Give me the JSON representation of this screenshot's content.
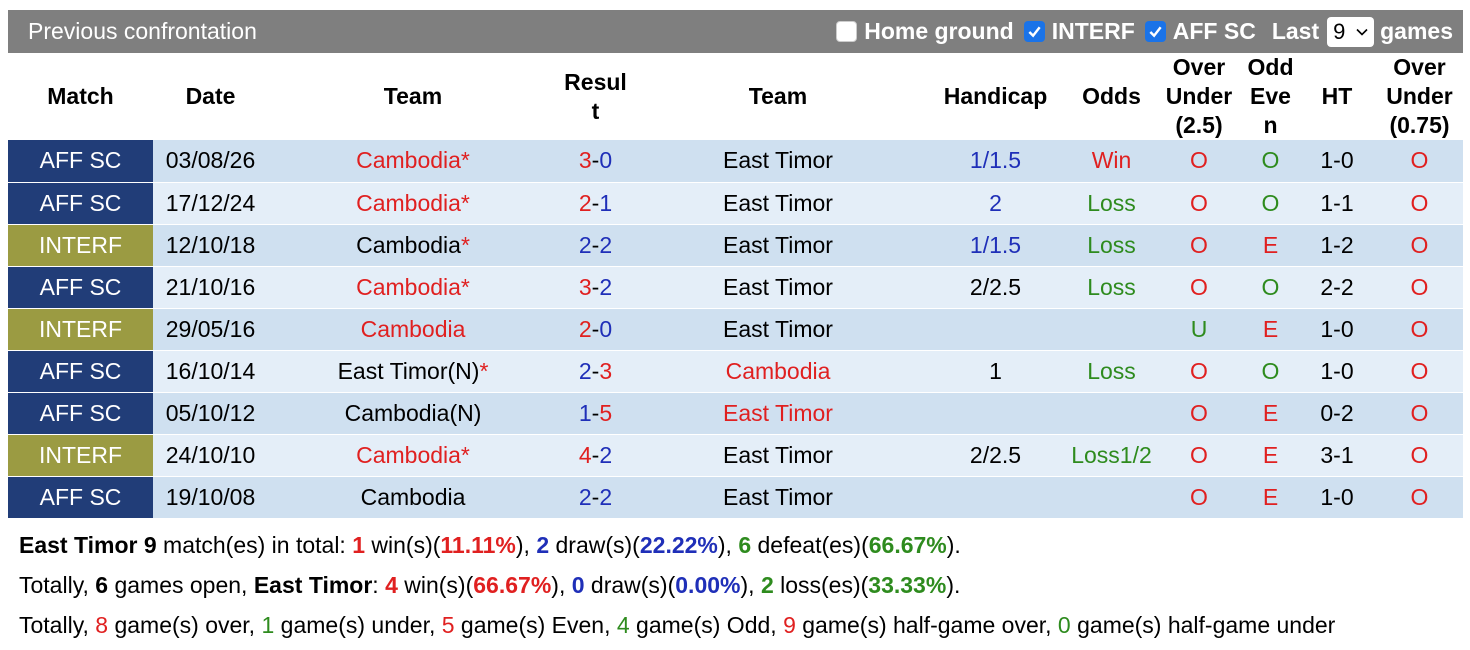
{
  "header": {
    "title": "Previous confrontation",
    "filters": [
      {
        "label": "Home ground",
        "checked": false
      },
      {
        "label": "INTERF",
        "checked": true
      },
      {
        "label": "AFF SC",
        "checked": true
      }
    ],
    "last_label": "Last",
    "last_value": "9",
    "games_label": "games"
  },
  "columns": {
    "match": "Match",
    "date": "Date",
    "team1": "Team",
    "result_l1": "Resul",
    "result_l2": "t",
    "team2": "Team",
    "handicap": "Handicap",
    "odds": "Odds",
    "ou_l1": "Over",
    "ou_l2": "Under",
    "ou_l3": "(2.5)",
    "oe_l1": "Odd",
    "oe_l2": "Eve",
    "oe_l3": "n",
    "ht": "HT",
    "ou2_l1": "Over",
    "ou2_l2": "Under",
    "ou2_l3": "(0.75)"
  },
  "rows": [
    {
      "match": "AFF SC",
      "date": "03/08/26",
      "team1": "Cambodia*",
      "team1_color": "red",
      "g1": "3",
      "g2": "0",
      "g1_color": "red",
      "g2_color": "blue",
      "team2": "East Timor",
      "team2_color": "dark",
      "handicap": "1/1.5",
      "handicap_color": "blue",
      "odds": "Win",
      "odds_color": "red",
      "ou": "O",
      "ou_color": "red",
      "oe": "O",
      "oe_color": "green",
      "ht": "1-0",
      "ou2": "O",
      "ou2_color": "red"
    },
    {
      "match": "AFF SC",
      "date": "17/12/24",
      "team1": "Cambodia*",
      "team1_color": "red",
      "g1": "2",
      "g2": "1",
      "g1_color": "red",
      "g2_color": "blue",
      "team2": "East Timor",
      "team2_color": "dark",
      "handicap": "2",
      "handicap_color": "blue",
      "odds": "Loss",
      "odds_color": "green",
      "ou": "O",
      "ou_color": "red",
      "oe": "O",
      "oe_color": "green",
      "ht": "1-1",
      "ou2": "O",
      "ou2_color": "red"
    },
    {
      "match": "INTERF",
      "date": "12/10/18",
      "team1": "Cambodia",
      "team1_star": "*",
      "team1_color": "dark",
      "g1": "2",
      "g2": "2",
      "g1_color": "blue",
      "g2_color": "blue",
      "team2": "East Timor",
      "team2_color": "dark",
      "handicap": "1/1.5",
      "handicap_color": "blue",
      "odds": "Loss",
      "odds_color": "green",
      "ou": "O",
      "ou_color": "red",
      "oe": "E",
      "oe_color": "red",
      "ht": "1-2",
      "ou2": "O",
      "ou2_color": "red"
    },
    {
      "match": "AFF SC",
      "date": "21/10/16",
      "team1": "Cambodia*",
      "team1_color": "red",
      "g1": "3",
      "g2": "2",
      "g1_color": "red",
      "g2_color": "blue",
      "team2": "East Timor",
      "team2_color": "dark",
      "handicap": "2/2.5",
      "handicap_color": "dark",
      "odds": "Loss",
      "odds_color": "green",
      "ou": "O",
      "ou_color": "red",
      "oe": "O",
      "oe_color": "green",
      "ht": "2-2",
      "ou2": "O",
      "ou2_color": "red"
    },
    {
      "match": "INTERF",
      "date": "29/05/16",
      "team1": "Cambodia",
      "team1_color": "red",
      "g1": "2",
      "g2": "0",
      "g1_color": "red",
      "g2_color": "blue",
      "team2": "East Timor",
      "team2_color": "dark",
      "handicap": "",
      "handicap_color": "dark",
      "odds": "",
      "odds_color": "dark",
      "ou": "U",
      "ou_color": "green",
      "oe": "E",
      "oe_color": "red",
      "ht": "1-0",
      "ou2": "O",
      "ou2_color": "red"
    },
    {
      "match": "AFF SC",
      "date": "16/10/14",
      "team1": "East Timor(N)",
      "team1_star": "*",
      "team1_color": "dark",
      "g1": "2",
      "g2": "3",
      "g1_color": "blue",
      "g2_color": "red",
      "team2": "Cambodia",
      "team2_color": "red",
      "handicap": "1",
      "handicap_color": "dark",
      "odds": "Loss",
      "odds_color": "green",
      "ou": "O",
      "ou_color": "red",
      "oe": "O",
      "oe_color": "green",
      "ht": "1-0",
      "ou2": "O",
      "ou2_color": "red"
    },
    {
      "match": "AFF SC",
      "date": "05/10/12",
      "team1": "Cambodia(N)",
      "team1_color": "dark",
      "g1": "1",
      "g2": "5",
      "g1_color": "blue",
      "g2_color": "red",
      "team2": "East Timor",
      "team2_color": "red",
      "handicap": "",
      "handicap_color": "dark",
      "odds": "",
      "odds_color": "dark",
      "ou": "O",
      "ou_color": "red",
      "oe": "E",
      "oe_color": "red",
      "ht": "0-2",
      "ou2": "O",
      "ou2_color": "red"
    },
    {
      "match": "INTERF",
      "date": "24/10/10",
      "team1": "Cambodia*",
      "team1_color": "red",
      "g1": "4",
      "g2": "2",
      "g1_color": "red",
      "g2_color": "blue",
      "team2": "East Timor",
      "team2_color": "dark",
      "handicap": "2/2.5",
      "handicap_color": "dark",
      "odds": "Loss1/2",
      "odds_color": "green",
      "ou": "O",
      "ou_color": "red",
      "oe": "E",
      "oe_color": "red",
      "ht": "3-1",
      "ou2": "O",
      "ou2_color": "red"
    },
    {
      "match": "AFF SC",
      "date": "19/10/08",
      "team1": "Cambodia",
      "team1_color": "dark",
      "g1": "2",
      "g2": "2",
      "g1_color": "blue",
      "g2_color": "blue",
      "team2": "East Timor",
      "team2_color": "dark",
      "handicap": "",
      "handicap_color": "dark",
      "odds": "",
      "odds_color": "dark",
      "ou": "O",
      "ou_color": "red",
      "oe": "E",
      "oe_color": "red",
      "ht": "1-0",
      "ou2": "O",
      "ou2_color": "red"
    }
  ],
  "summary": {
    "line1": [
      {
        "t": "East Timor 9",
        "s": "b"
      },
      {
        "t": " match(es) in total: "
      },
      {
        "t": "1",
        "s": "red b"
      },
      {
        "t": " win(s)("
      },
      {
        "t": "11.11%",
        "s": "red b"
      },
      {
        "t": "), "
      },
      {
        "t": "2",
        "s": "blue b"
      },
      {
        "t": " draw(s)("
      },
      {
        "t": "22.22%",
        "s": "blue b"
      },
      {
        "t": "), "
      },
      {
        "t": "6",
        "s": "green b"
      },
      {
        "t": " defeat(es)("
      },
      {
        "t": "66.67%",
        "s": "green b"
      },
      {
        "t": ")."
      }
    ],
    "line2": [
      {
        "t": "Totally, "
      },
      {
        "t": "6",
        "s": "b"
      },
      {
        "t": " games open, "
      },
      {
        "t": "East Timor",
        "s": "b"
      },
      {
        "t": ": "
      },
      {
        "t": "4",
        "s": "red b"
      },
      {
        "t": " win(s)("
      },
      {
        "t": "66.67%",
        "s": "red b"
      },
      {
        "t": "), "
      },
      {
        "t": "0",
        "s": "blue b"
      },
      {
        "t": " draw(s)("
      },
      {
        "t": "0.00%",
        "s": "blue b"
      },
      {
        "t": "), "
      },
      {
        "t": "2",
        "s": "green b"
      },
      {
        "t": " loss(es)("
      },
      {
        "t": "33.33%",
        "s": "green b"
      },
      {
        "t": ")."
      }
    ],
    "line3": [
      {
        "t": "Totally, "
      },
      {
        "t": "8",
        "s": "red"
      },
      {
        "t": " game(s) over, "
      },
      {
        "t": "1",
        "s": "green"
      },
      {
        "t": " game(s) under, "
      },
      {
        "t": "5",
        "s": "red"
      },
      {
        "t": " game(s) Even, "
      },
      {
        "t": "4",
        "s": "green"
      },
      {
        "t": " game(s) Odd, "
      },
      {
        "t": "9",
        "s": "red"
      },
      {
        "t": " game(s) half-game over, "
      },
      {
        "t": "0",
        "s": "green"
      },
      {
        "t": " game(s) half-game under"
      }
    ]
  }
}
